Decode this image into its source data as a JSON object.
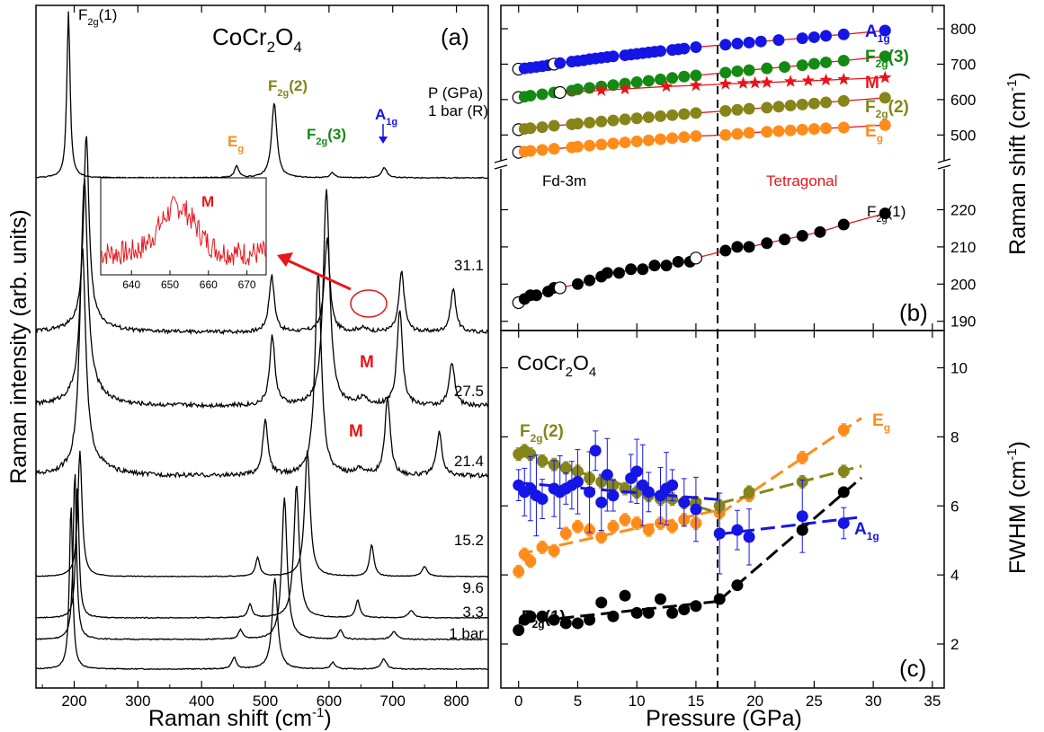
{
  "colors": {
    "black": "#000000",
    "red": "#e8141b",
    "blue": "#1515e6",
    "green": "#138a13",
    "olive": "#85851a",
    "orange": "#ff8c1a",
    "inset_line": "#e8141b"
  },
  "panel_a": {
    "compound_main": "CoCr",
    "compound_sub": "2",
    "compound_end": "O",
    "compound_sub2": "4",
    "panel_label": "(a)",
    "ylabel": "Raman intensity (arb. units)",
    "xlabel_main": "Raman shift (cm",
    "xlabel_sup": "-1",
    "xlabel_end": ")",
    "pressure_header": "P (GPa)",
    "peak_labels": {
      "f2g1": {
        "main": "F",
        "sub": "2g",
        "tail": "(1)"
      },
      "f2g2": {
        "main": "F",
        "sub": "2g",
        "tail": "(2)"
      },
      "f2g3": {
        "main": "F",
        "sub": "2g",
        "tail": "(3)"
      },
      "eg": {
        "main": "E",
        "sub": "g"
      },
      "a1g": {
        "main": "A",
        "sub": "1g"
      },
      "m1": "M",
      "m2": "M"
    },
    "inset_label": "M",
    "xticks": [
      "200",
      "300",
      "400",
      "500",
      "600",
      "700",
      "800"
    ],
    "inset_xticks": [
      "640",
      "650",
      "660",
      "670"
    ]
  },
  "panel_b": {
    "panel_label": "(b)",
    "ylabel_main": "Raman shift (cm",
    "ylabel_sup": "-1",
    "ylabel_end": ")",
    "phase_left": "Fd-3m",
    "phase_right": "Tetragonal",
    "mode_labels": {
      "a1g": {
        "main": "A",
        "sub": "1g"
      },
      "f2g3": {
        "main": "F",
        "sub": "2g",
        "tail": "(3)"
      },
      "m": "M",
      "f2g2": {
        "main": "F",
        "sub": "2g",
        "tail": "(2)"
      },
      "eg": {
        "main": "E",
        "sub": "g"
      },
      "f2g1": {
        "main": "F",
        "sub": "2g",
        "tail": "(1)"
      }
    },
    "yticks_upper": [
      "500",
      "600",
      "700",
      "800"
    ],
    "yticks_lower": [
      "190",
      "200",
      "210",
      "220"
    ]
  },
  "panel_c": {
    "panel_label": "(c)",
    "compound_main": "CoCr",
    "compound_sub": "2",
    "compound_end": "O",
    "compound_sub2": "4",
    "xlabel": "Pressure (GPa)",
    "ylabel_main": "FWHM (cm",
    "ylabel_sup": "-1",
    "ylabel_end": ")",
    "series_labels": {
      "f2g2": {
        "main": "F",
        "sub": "2g",
        "tail": "(2)"
      },
      "eg": {
        "main": "E",
        "sub": "g"
      },
      "a1g": {
        "main": "A",
        "sub": "1g"
      },
      "f2g1": {
        "main": "F",
        "sub": "2g",
        "tail": "(1)"
      }
    },
    "yticks": [
      "2",
      "4",
      "6",
      "8",
      "10"
    ],
    "xticks": [
      "0",
      "5",
      "10",
      "15",
      "20",
      "25",
      "30",
      "35"
    ]
  },
  "chart_data": [
    {
      "type": "line",
      "panel": "a",
      "xlabel": "Raman shift (cm-1)",
      "ylabel": "Raman intensity (arb. units)",
      "xlim": [
        140,
        850
      ],
      "traces": [
        {
          "pressure": "1 bar",
          "peaks": [
            195,
            451,
            515,
            606,
            686
          ]
        },
        {
          "pressure": "3.3",
          "peaks": [
            201,
            461,
            530,
            618,
            702
          ]
        },
        {
          "pressure": "9.6",
          "peaks": [
            205,
            476,
            549,
            645,
            729
          ]
        },
        {
          "pressure": "15.2",
          "peaks": [
            209,
            488,
            566,
            667,
            750
          ]
        },
        {
          "pressure": "21.4",
          "peaks": [
            213,
            500,
            583,
            648,
            692,
            773
          ]
        },
        {
          "pressure": "27.5",
          "peaks": [
            216,
            511,
            596,
            652,
            711,
            793
          ]
        },
        {
          "pressure": "31.1",
          "peaks": [
            219,
            510,
            597,
            652,
            714,
            795
          ]
        },
        {
          "pressure": "1 bar (R)",
          "peaks": [
            191,
            455,
            514,
            605,
            687
          ]
        }
      ],
      "inset": {
        "xlim": [
          632,
          675
        ],
        "peak_center": 652
      }
    },
    {
      "type": "scatter",
      "panel": "b",
      "xlabel": "Pressure (GPa)",
      "ylabel": "Raman shift (cm-1)",
      "xlim": [
        -1.5,
        36
      ],
      "transition_pressure": 17,
      "series": [
        {
          "name": "A1g",
          "x": [
            0,
            0.5,
            1,
            1.5,
            2,
            2.5,
            3,
            3.5,
            4.5,
            5,
            5.5,
            6,
            6.5,
            7,
            7.5,
            8,
            9,
            9.5,
            10,
            10.5,
            11,
            11.5,
            12,
            13,
            13.5,
            14,
            15,
            17.5,
            18.5,
            19.5,
            20.5,
            22,
            24,
            25,
            26,
            27.5,
            31
          ],
          "y": [
            686,
            688,
            690,
            692,
            694,
            697,
            700,
            703,
            707,
            709,
            711,
            714,
            716,
            718,
            720,
            722,
            725,
            727,
            729,
            731,
            733,
            735,
            737,
            740,
            742,
            744,
            748,
            755,
            758,
            761,
            764,
            768,
            773,
            776,
            780,
            784,
            795
          ]
        },
        {
          "name": "F2g(3)",
          "x": [
            0,
            0.5,
            1,
            2,
            3,
            4.5,
            5,
            6,
            7,
            8,
            9,
            10,
            11,
            12,
            13,
            14,
            15,
            17.5,
            18.5,
            19.5,
            21,
            22.5,
            24,
            25,
            26,
            27.5,
            31
          ],
          "y": [
            606,
            608,
            611,
            615,
            620,
            625,
            629,
            633,
            637,
            641,
            645,
            649,
            653,
            657,
            661,
            665,
            668,
            676,
            680,
            683,
            688,
            692,
            697,
            701,
            705,
            710,
            722
          ]
        },
        {
          "name": "M",
          "x": [
            3.5,
            7,
            9,
            12.5,
            15,
            17.5,
            19,
            20,
            21,
            23,
            24.5,
            26,
            27.5,
            31
          ],
          "y": [
            620,
            626,
            630,
            637,
            640,
            644,
            646,
            647,
            648,
            651,
            653,
            655,
            657,
            662
          ]
        },
        {
          "name": "F2g(2)",
          "x": [
            0,
            0.5,
            1,
            2,
            3,
            4.5,
            5,
            6,
            7,
            8,
            9,
            10,
            11,
            12,
            13,
            14,
            15,
            17.5,
            18.5,
            19.5,
            21,
            22,
            23,
            24,
            25,
            26,
            27.5,
            31
          ],
          "y": [
            515,
            517,
            519,
            522,
            526,
            530,
            532,
            535,
            538,
            541,
            544,
            547,
            550,
            553,
            556,
            559,
            562,
            568,
            571,
            574,
            577,
            580,
            583,
            586,
            589,
            592,
            596,
            605
          ]
        },
        {
          "name": "Eg",
          "x": [
            0,
            0.5,
            1,
            2,
            3,
            4.5,
            5,
            6,
            7,
            8,
            9,
            10,
            11,
            12,
            13,
            14,
            15,
            17.5,
            18.5,
            19.5,
            21,
            22,
            23,
            24,
            25,
            26,
            27.5,
            31
          ],
          "y": [
            451,
            453,
            455,
            458,
            461,
            465,
            467,
            470,
            473,
            476,
            479,
            482,
            485,
            488,
            491,
            494,
            497,
            500,
            503,
            506,
            509,
            511,
            513,
            515,
            517,
            519,
            521,
            528
          ]
        },
        {
          "name": "F2g(1)",
          "x": [
            0,
            0.5,
            1,
            1.5,
            2.5,
            3,
            3.5,
            5,
            6,
            7,
            7.5,
            8.5,
            9.5,
            10.5,
            11.5,
            12.5,
            13.5,
            14.5,
            15,
            17.5,
            18.5,
            19.5,
            21,
            22.5,
            24,
            25.5,
            27.5,
            31
          ],
          "y": [
            195,
            196,
            197,
            197,
            198,
            199,
            199,
            200,
            201,
            202,
            203,
            203,
            204,
            204,
            205,
            205,
            206,
            206,
            207,
            209,
            210,
            210,
            211,
            212,
            213,
            214,
            216,
            219
          ]
        }
      ],
      "open_symbol_pressures": [
        0,
        3,
        7.5,
        15,
        23.5,
        3.5
      ]
    },
    {
      "type": "scatter",
      "panel": "c",
      "xlabel": "Pressure (GPa)",
      "ylabel": "FWHM (cm-1)",
      "xlim": [
        -1.5,
        36
      ],
      "ylim": [
        1.5,
        11
      ],
      "transition_pressure": 17,
      "series": [
        {
          "name": "F2g(2)",
          "x": [
            0,
            0.5,
            1,
            2,
            3,
            4,
            5,
            6,
            7,
            8,
            9,
            10,
            11,
            12,
            13,
            14,
            15,
            17,
            19.5,
            24,
            27.5
          ],
          "y": [
            7.5,
            7.6,
            7.5,
            7.3,
            7.2,
            7.1,
            7.0,
            6.8,
            6.7,
            6.6,
            6.5,
            6.4,
            6.3,
            6.2,
            6.2,
            6.1,
            6.1,
            6.0,
            6.4,
            6.7,
            7.0
          ]
        },
        {
          "name": "A1g",
          "x": [
            0,
            0.5,
            1,
            1.5,
            2,
            3,
            3.5,
            4,
            4.5,
            5,
            6,
            6.5,
            7,
            7.5,
            8,
            9.5,
            10,
            10.5,
            11,
            12,
            12.5,
            13,
            14,
            15,
            17,
            18.5,
            19.5,
            24,
            27.5
          ],
          "y": [
            6.6,
            6.4,
            6.5,
            6.3,
            6.2,
            6.5,
            6.4,
            6.5,
            6.6,
            6.7,
            6.4,
            7.6,
            6.1,
            6.9,
            6.3,
            6.8,
            7.0,
            6.6,
            6.4,
            6.3,
            6.5,
            6.6,
            6.1,
            5.9,
            5.2,
            5.3,
            5.1,
            5.7,
            5.5
          ]
        },
        {
          "name": "Eg",
          "x": [
            0,
            0.5,
            1,
            2,
            3,
            4,
            5,
            6,
            7,
            8,
            9,
            10,
            11,
            12,
            13,
            14,
            15,
            17,
            19.5,
            24,
            27.5
          ],
          "y": [
            4.1,
            4.6,
            4.4,
            4.8,
            4.7,
            5.2,
            5.4,
            5.3,
            5.1,
            5.4,
            5.6,
            5.5,
            5.3,
            5.5,
            5.4,
            5.6,
            5.5,
            5.8,
            6.3,
            7.4,
            8.2
          ]
        },
        {
          "name": "F2g(1)",
          "x": [
            0,
            0.5,
            1,
            2,
            3,
            4,
            5,
            6,
            7,
            8,
            9,
            10,
            11,
            12,
            13,
            14,
            15,
            17,
            18.5,
            24,
            27.5
          ],
          "y": [
            2.4,
            2.7,
            2.8,
            2.8,
            2.7,
            2.6,
            2.6,
            2.7,
            3.2,
            2.8,
            3.4,
            2.9,
            2.9,
            3.3,
            2.9,
            3.0,
            3.1,
            3.3,
            3.7,
            5.3,
            6.4
          ]
        }
      ]
    }
  ]
}
